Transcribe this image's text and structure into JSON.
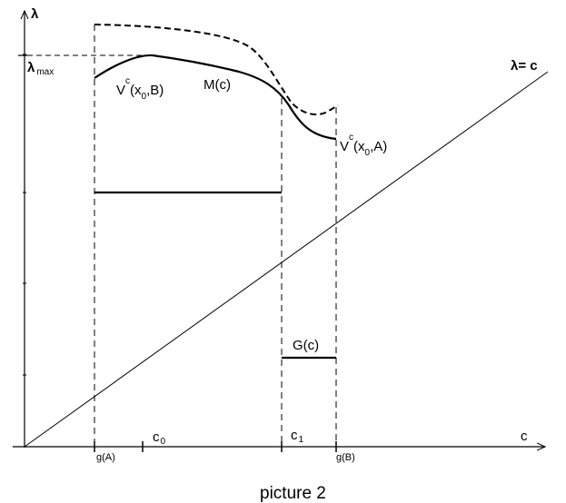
{
  "axes": {
    "y_label": "λ",
    "x_label": "c",
    "lambda_max_main": "λ",
    "lambda_max_sub": "max"
  },
  "ticks": {
    "gA": "g(A)",
    "gB": "g(B)",
    "c0_main": "c",
    "c0_sub": "0",
    "c1_main": "c",
    "c1_sub": "1"
  },
  "curves": {
    "diagonal_label": "λ= c",
    "mc_label": "M(c)",
    "vb": {
      "v": "V",
      "sup": "c",
      "open": "(x",
      "sub": "0",
      "close": ",B)"
    },
    "va": {
      "v": "V",
      "sup": "c",
      "open": "(x",
      "sub": "0",
      "close": ",A)"
    },
    "gc_label": "G(c)"
  },
  "caption": "picture 2"
}
